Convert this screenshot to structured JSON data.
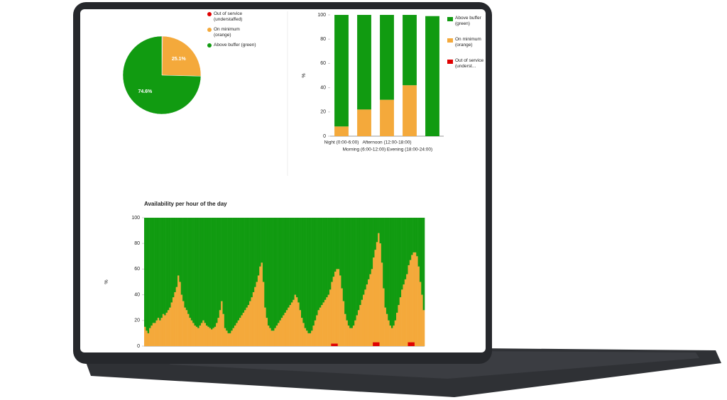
{
  "chart_data": [
    {
      "type": "pie",
      "series": [
        {
          "name": "Out of service (understaffed)",
          "color": "#e00000"
        },
        {
          "name": "On minimum (orange)",
          "color": "#f4a93b"
        },
        {
          "name": "Above buffer (green)",
          "color": "#119b11"
        }
      ],
      "values": [
        0.3,
        25.1,
        74.6
      ],
      "value_labels": [
        null,
        "25.1%",
        "74.6%"
      ]
    },
    {
      "type": "bar",
      "stacked": true,
      "ylabel": "%",
      "categories": [
        "Night (0:00-6:00)",
        "Morning (6:00-12:00)",
        "Afternoon (12:00-18:00)",
        "Evening (18:00-24:00)",
        null
      ],
      "series": [
        {
          "name": "Above buffer (green)",
          "color": "#119b11",
          "values": [
            92,
            78,
            70,
            58,
            99
          ]
        },
        {
          "name": "On minimum (orange)",
          "color": "#f4a93b",
          "values": [
            8,
            22,
            30,
            42,
            0
          ]
        },
        {
          "name": "Out of service (underst...",
          "color": "#e00000",
          "values": [
            0,
            0,
            0,
            0,
            0
          ]
        }
      ],
      "ylim": [
        0,
        100
      ],
      "yticks": [
        0,
        20,
        40,
        60,
        80,
        100
      ]
    },
    {
      "type": "bar",
      "stacked": true,
      "title": "Availability per hour of the day",
      "ylabel": "%",
      "series": [
        {
          "color": "#e00000",
          "values": [
            0,
            0,
            0,
            0,
            0,
            0,
            0,
            0,
            0,
            0,
            0,
            0,
            0,
            0,
            0,
            0,
            0,
            0,
            0,
            0,
            0,
            0,
            0,
            0,
            0,
            0,
            0,
            0,
            0,
            0,
            0,
            0,
            0,
            0,
            0,
            0,
            0,
            0,
            0,
            0,
            0,
            0,
            0,
            0,
            0,
            0,
            0,
            0,
            0,
            0,
            0,
            0,
            0,
            0,
            0,
            0,
            0,
            0,
            0,
            0,
            0,
            0,
            0,
            0,
            0,
            0,
            0,
            0,
            0,
            0,
            0,
            0,
            0,
            0,
            0,
            0,
            0,
            0,
            0,
            0,
            0,
            0,
            0,
            0,
            0,
            0,
            0,
            0,
            0,
            0,
            0,
            0,
            0,
            0,
            0,
            0,
            0,
            0,
            0,
            0,
            0,
            0,
            0,
            0,
            0,
            0,
            0,
            0,
            0,
            0,
            0,
            0,
            2,
            2,
            2,
            2,
            0,
            0,
            0,
            0,
            0,
            0,
            0,
            0,
            0,
            0,
            0,
            0,
            0,
            0,
            0,
            0,
            0,
            0,
            0,
            0,
            0,
            3,
            3,
            3,
            3,
            0,
            0,
            0,
            0,
            0,
            0,
            0,
            0,
            0,
            0,
            0,
            0,
            0,
            0,
            0,
            0,
            0,
            3,
            3,
            3,
            3,
            0,
            0,
            0,
            0,
            0,
            0
          ]
        },
        {
          "color": "#f4a93b",
          "values": [
            15,
            12,
            10,
            14,
            16,
            18,
            18,
            20,
            22,
            20,
            22,
            25,
            24,
            26,
            28,
            30,
            34,
            38,
            42,
            46,
            55,
            50,
            40,
            35,
            30,
            28,
            25,
            22,
            20,
            18,
            16,
            15,
            14,
            16,
            18,
            20,
            18,
            16,
            15,
            14,
            13,
            14,
            15,
            18,
            22,
            28,
            35,
            25,
            14,
            12,
            10,
            10,
            12,
            14,
            16,
            18,
            20,
            22,
            24,
            26,
            28,
            30,
            32,
            35,
            38,
            42,
            46,
            50,
            55,
            62,
            65,
            50,
            30,
            22,
            16,
            14,
            12,
            12,
            14,
            16,
            18,
            20,
            22,
            24,
            26,
            28,
            30,
            32,
            34,
            36,
            40,
            38,
            34,
            28,
            22,
            18,
            14,
            12,
            10,
            10,
            12,
            16,
            20,
            24,
            28,
            30,
            32,
            34,
            36,
            38,
            40,
            44,
            48,
            52,
            56,
            58,
            60,
            55,
            45,
            35,
            25,
            20,
            16,
            14,
            14,
            16,
            20,
            24,
            28,
            32,
            36,
            40,
            44,
            48,
            52,
            56,
            60,
            66,
            72,
            78,
            85,
            80,
            65,
            45,
            30,
            25,
            20,
            16,
            14,
            16,
            20,
            26,
            32,
            38,
            44,
            48,
            52,
            56,
            60,
            64,
            68,
            70,
            73,
            70,
            62,
            50,
            40,
            28
          ]
        },
        {
          "color": "#119b11",
          "values": [
            85,
            88,
            90,
            86,
            84,
            82,
            82,
            80,
            78,
            80,
            78,
            75,
            76,
            74,
            72,
            70,
            66,
            62,
            58,
            54,
            45,
            50,
            60,
            65,
            70,
            72,
            75,
            78,
            80,
            82,
            84,
            85,
            86,
            84,
            82,
            80,
            82,
            84,
            85,
            86,
            87,
            86,
            85,
            82,
            78,
            72,
            65,
            75,
            86,
            88,
            90,
            90,
            88,
            86,
            84,
            82,
            80,
            78,
            76,
            74,
            72,
            70,
            68,
            65,
            62,
            58,
            54,
            50,
            45,
            38,
            35,
            50,
            70,
            78,
            84,
            86,
            88,
            88,
            86,
            84,
            82,
            80,
            78,
            76,
            74,
            72,
            70,
            68,
            66,
            64,
            60,
            62,
            66,
            72,
            78,
            82,
            86,
            88,
            90,
            90,
            88,
            84,
            80,
            76,
            72,
            70,
            68,
            66,
            64,
            62,
            60,
            56,
            50,
            46,
            42,
            40,
            40,
            45,
            55,
            65,
            75,
            80,
            84,
            86,
            86,
            84,
            80,
            76,
            72,
            68,
            64,
            60,
            56,
            52,
            48,
            44,
            40,
            31,
            25,
            19,
            12,
            20,
            35,
            55,
            70,
            75,
            80,
            84,
            86,
            84,
            80,
            74,
            68,
            62,
            56,
            52,
            48,
            44,
            37,
            33,
            29,
            27,
            27,
            30,
            38,
            50,
            60,
            72
          ]
        }
      ],
      "ylim": [
        0,
        100
      ],
      "yticks": [
        0,
        20,
        40,
        60,
        80,
        100
      ]
    }
  ]
}
